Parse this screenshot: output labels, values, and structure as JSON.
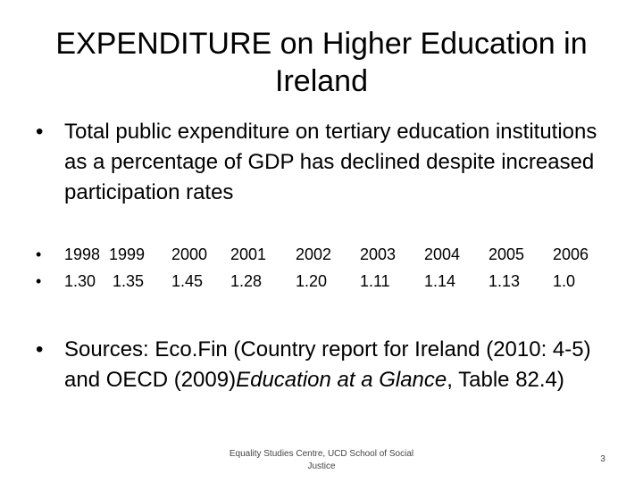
{
  "slide": {
    "title": "EXPENDITURE on Higher Education in Ireland",
    "bullet_marker": "•",
    "bullet1": "Total public expenditure on tertiary education institutions as a percentage of GDP has declined despite increased participation rates",
    "years": [
      "1998",
      "1999",
      "2000",
      "2001",
      "2002",
      "2003",
      "2004",
      "2005",
      "2006"
    ],
    "values": [
      "1.30",
      "1.35",
      "1.45",
      "1.28",
      "1.20",
      "1.11",
      "1.14",
      "1.13",
      "1.0"
    ],
    "sources_prefix": "Sources: Eco.Fin (Country report for Ireland (2010: 4-5) and OECD (2009)",
    "sources_italic": "Education at a Glance",
    "sources_suffix": ", Table 82.4)",
    "footer": "Equality Studies Centre, UCD School of Social Justice",
    "page_number": "3"
  }
}
